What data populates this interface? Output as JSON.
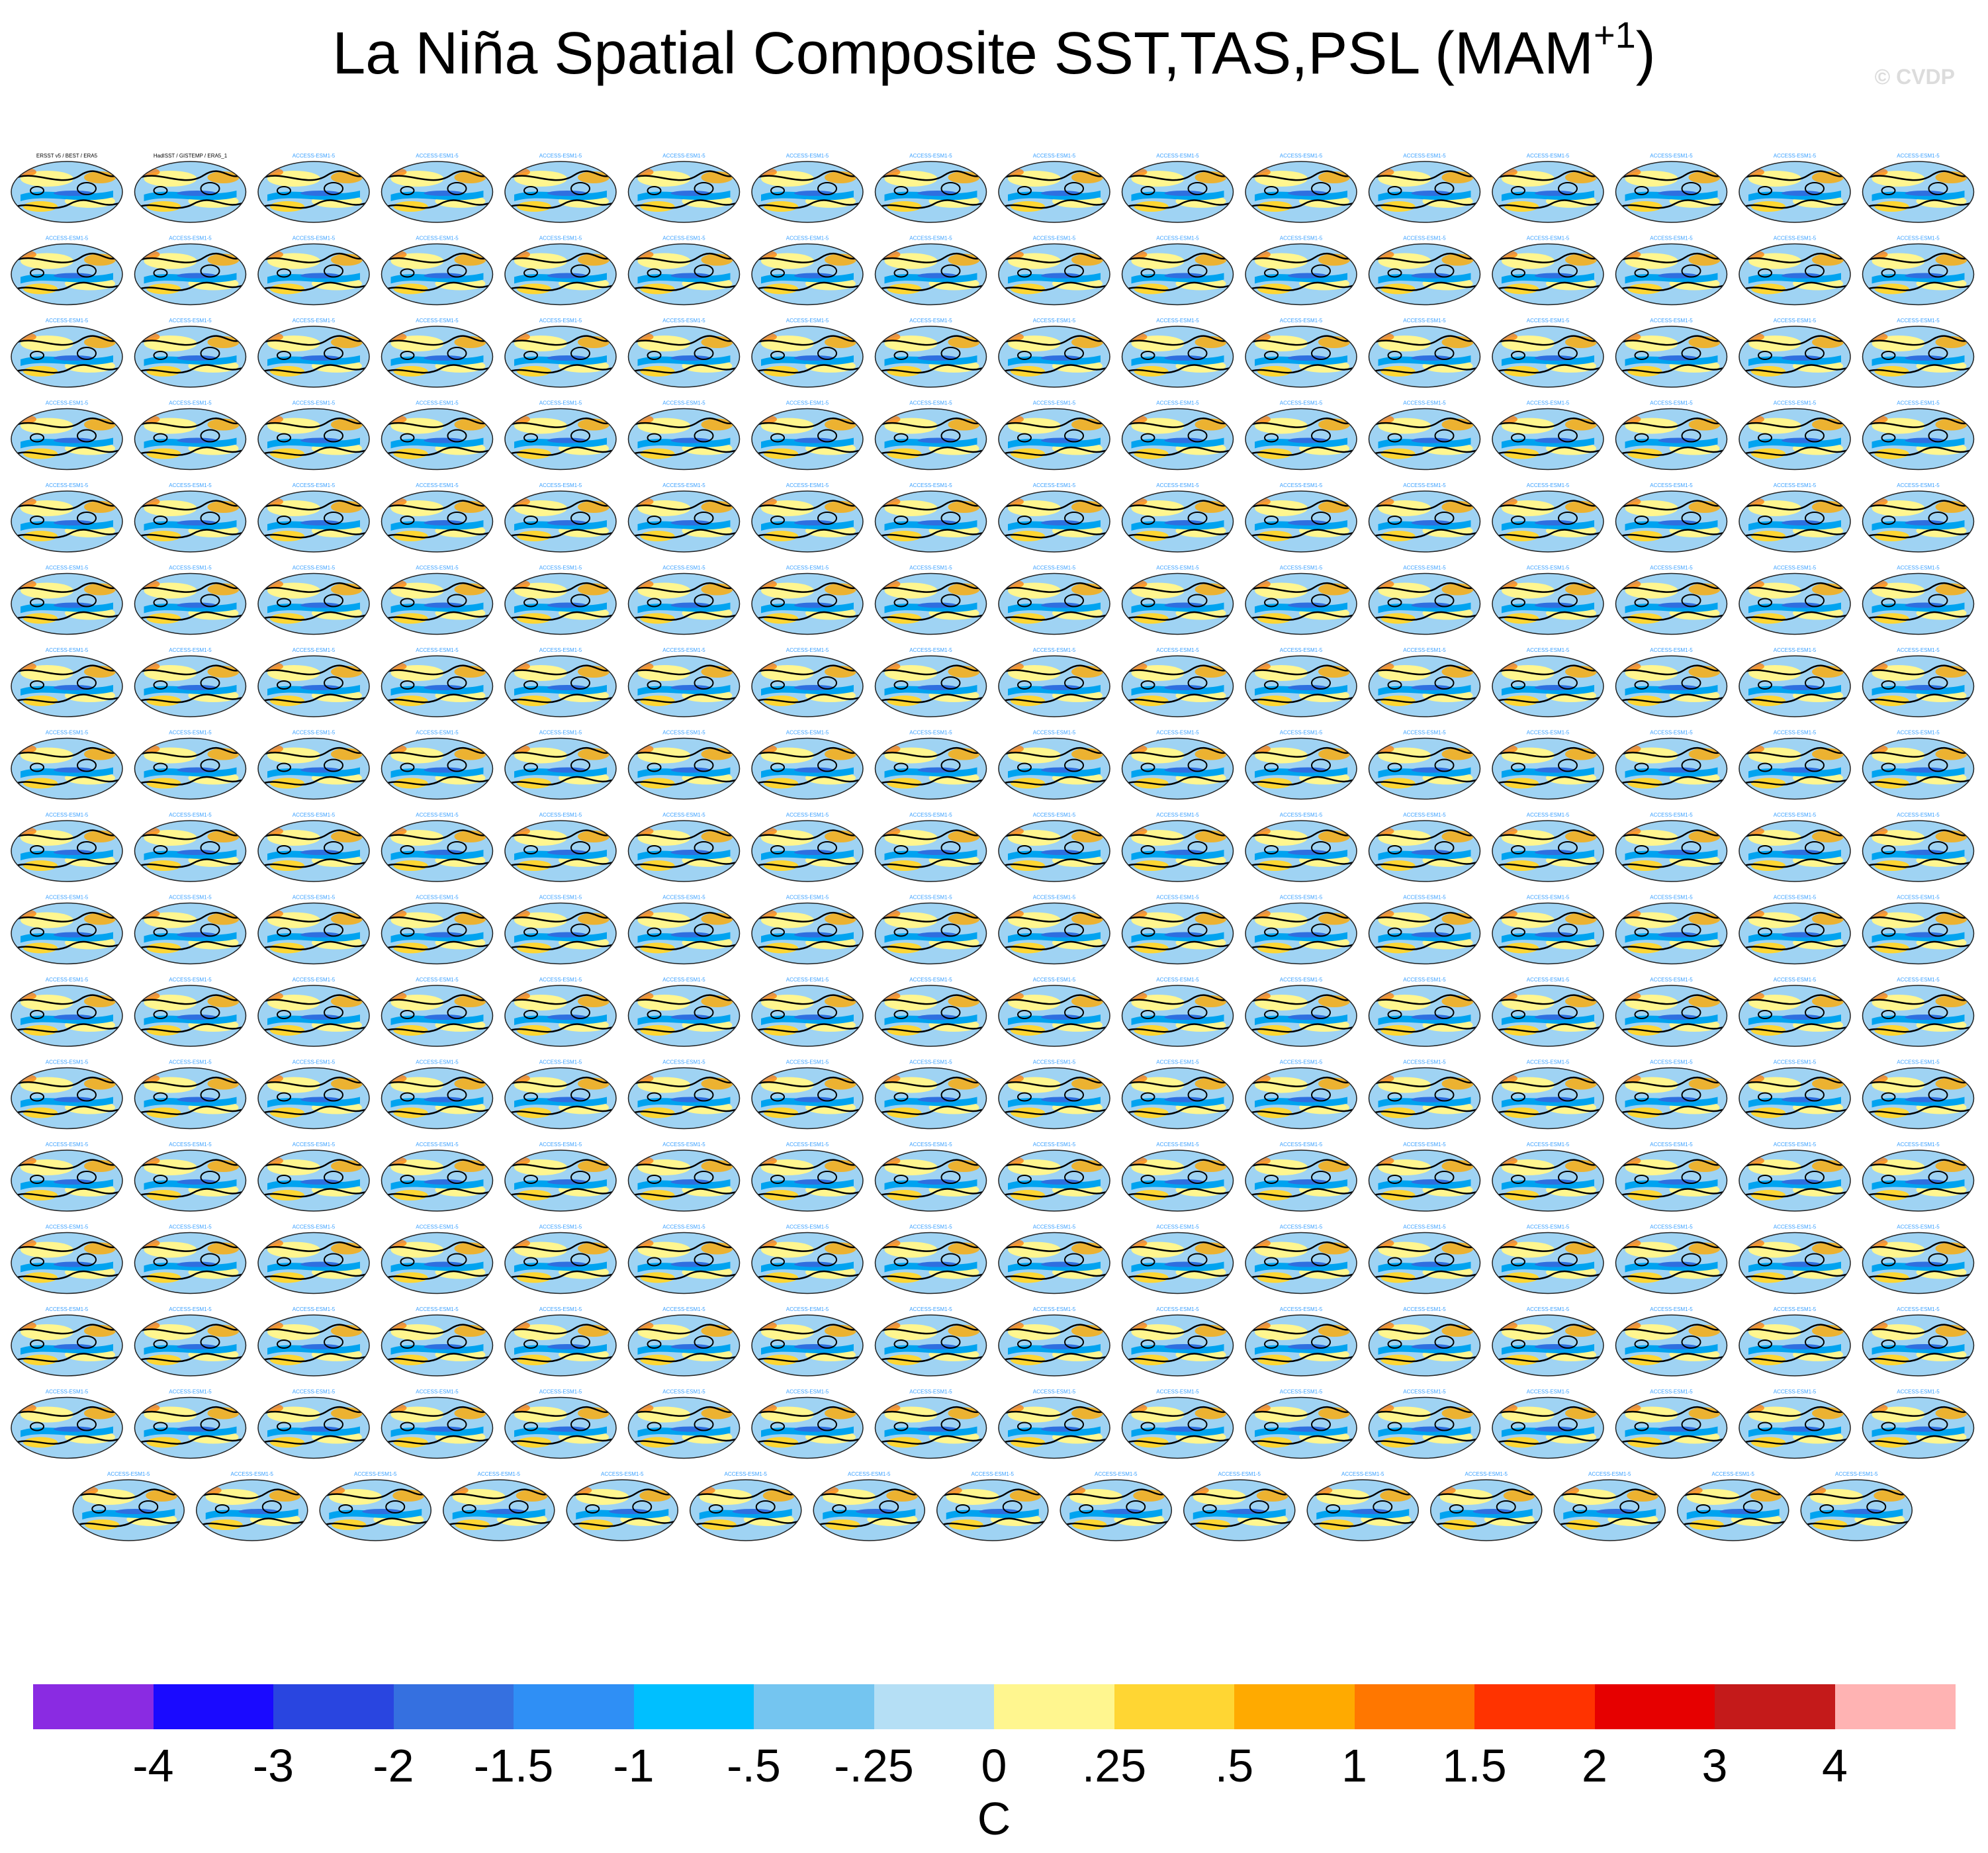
{
  "title": "La Niña Spatial Composite SST,TAS,PSL (MAM",
  "title_superscript": "+1",
  "title_close": ")",
  "watermark": "© CVDP",
  "panels": {
    "rows": 17,
    "cols": 16,
    "last_row_count": 15,
    "first_titles": [
      "ERSST v5 / BEST / ERA5",
      "HadISST / GISTEMP / ERA5_1"
    ],
    "model_title_prefix": "ACCESS-ESM1-5"
  },
  "colorbar": {
    "colors": [
      "#8a2be2",
      "#1a0aff",
      "#2945e0",
      "#3570e0",
      "#2f8ff5",
      "#00bfff",
      "#74c5f0",
      "#b5dff5",
      "#fff68f",
      "#ffd633",
      "#ffaa00",
      "#ff7700",
      "#ff3300",
      "#e60000",
      "#c41a1a",
      "#ffb3b3"
    ],
    "labels": [
      "-4",
      "-3",
      "-2",
      "-1.5",
      "-1",
      "-.5",
      "-.25",
      "0",
      ".25",
      ".5",
      "1",
      "1.5",
      "2",
      "3",
      "4"
    ],
    "units": "C"
  }
}
